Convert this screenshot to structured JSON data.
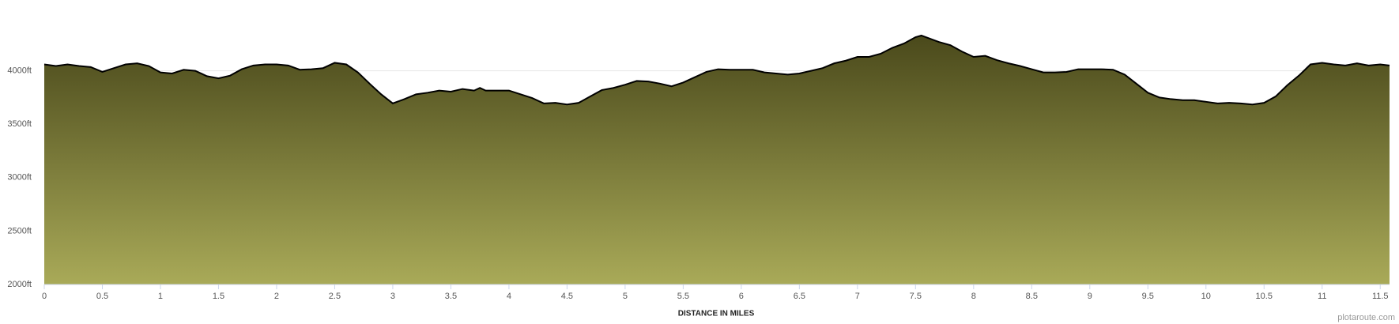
{
  "chart_data": {
    "type": "area",
    "x_label": "DISTANCE IN MILES",
    "credit": "plotaroute.com",
    "x": [
      0,
      0.1,
      0.2,
      0.3,
      0.4,
      0.5,
      0.6,
      0.7,
      0.8,
      0.9,
      1.0,
      1.1,
      1.2,
      1.3,
      1.4,
      1.5,
      1.6,
      1.7,
      1.8,
      1.9,
      2.0,
      2.1,
      2.2,
      2.3,
      2.4,
      2.5,
      2.6,
      2.7,
      2.8,
      2.9,
      3.0,
      3.1,
      3.2,
      3.3,
      3.4,
      3.5,
      3.6,
      3.7,
      3.75,
      3.8,
      3.9,
      4.0,
      4.1,
      4.2,
      4.3,
      4.4,
      4.5,
      4.6,
      4.7,
      4.8,
      4.9,
      5.0,
      5.1,
      5.2,
      5.3,
      5.4,
      5.5,
      5.6,
      5.7,
      5.8,
      5.9,
      6.0,
      6.1,
      6.2,
      6.3,
      6.4,
      6.5,
      6.6,
      6.7,
      6.8,
      6.9,
      7.0,
      7.1,
      7.2,
      7.3,
      7.4,
      7.5,
      7.55,
      7.7,
      7.8,
      7.9,
      8.0,
      8.1,
      8.2,
      8.3,
      8.4,
      8.5,
      8.6,
      8.7,
      8.8,
      8.9,
      9.0,
      9.1,
      9.2,
      9.3,
      9.4,
      9.5,
      9.6,
      9.7,
      9.8,
      9.9,
      10.0,
      10.1,
      10.2,
      10.3,
      10.4,
      10.5,
      10.6,
      10.7,
      10.8,
      10.9,
      11.0,
      11.1,
      11.2,
      11.3,
      11.4,
      11.5,
      11.58
    ],
    "values": [
      4060,
      4045,
      4060,
      4045,
      4035,
      3990,
      4025,
      4060,
      4070,
      4045,
      3985,
      3975,
      4010,
      4000,
      3950,
      3930,
      3955,
      4015,
      4050,
      4060,
      4060,
      4050,
      4010,
      4015,
      4025,
      4075,
      4060,
      3985,
      3880,
      3780,
      3695,
      3735,
      3780,
      3795,
      3815,
      3805,
      3830,
      3815,
      3840,
      3815,
      3815,
      3815,
      3780,
      3745,
      3695,
      3700,
      3685,
      3700,
      3760,
      3820,
      3840,
      3870,
      3905,
      3900,
      3880,
      3855,
      3890,
      3940,
      3990,
      4015,
      4010,
      4010,
      4010,
      3985,
      3975,
      3965,
      3975,
      4000,
      4025,
      4070,
      4095,
      4130,
      4130,
      4160,
      4215,
      4255,
      4315,
      4330,
      4270,
      4240,
      4180,
      4130,
      4140,
      4100,
      4070,
      4045,
      4015,
      3985,
      3985,
      3990,
      4015,
      4015,
      4015,
      4010,
      3965,
      3880,
      3795,
      3750,
      3735,
      3725,
      3725,
      3710,
      3695,
      3700,
      3695,
      3685,
      3700,
      3760,
      3865,
      3955,
      4060,
      4075,
      4060,
      4050,
      4070,
      4050,
      4060,
      4050
    ],
    "color": "#000000",
    "fill_gradient": [
      "#4a491b",
      "#a9aa58"
    ],
    "xlim": [
      0,
      11.58
    ],
    "ylim": [
      2000,
      4500
    ],
    "xticks": [
      0,
      0.5,
      1,
      1.5,
      2,
      2.5,
      3,
      3.5,
      4,
      4.5,
      5,
      5.5,
      6,
      6.5,
      7,
      7.5,
      8,
      8.5,
      9,
      9.5,
      10,
      10.5,
      11,
      11.5
    ],
    "yticks": [
      {
        "value": 2000,
        "label": "2000ft"
      },
      {
        "value": 2500,
        "label": "2500ft"
      },
      {
        "value": 3000,
        "label": "3000ft"
      },
      {
        "value": 3500,
        "label": "3500ft"
      },
      {
        "value": 4000,
        "label": "4000ft"
      }
    ],
    "grid": true
  }
}
